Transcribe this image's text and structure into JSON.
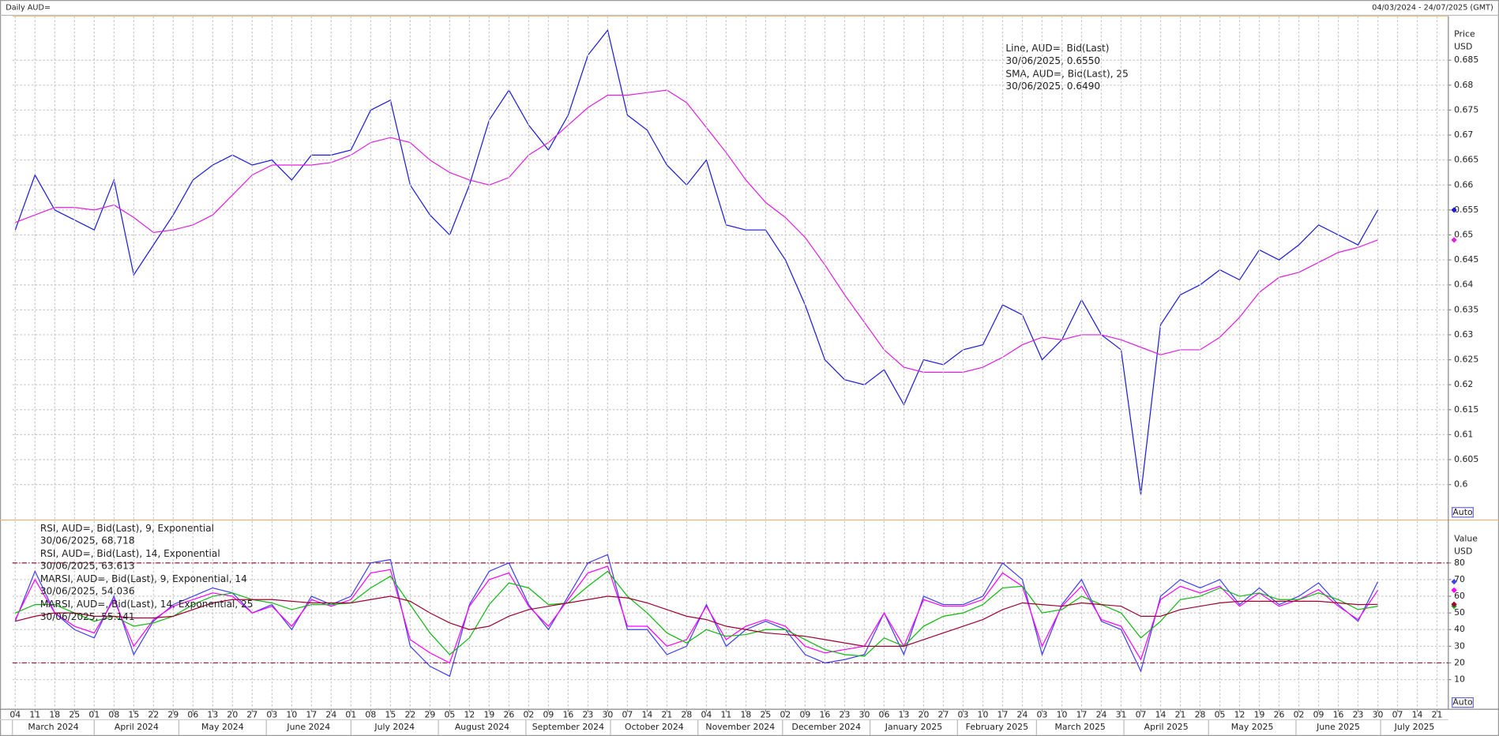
{
  "header": {
    "title": "Daily AUD=",
    "range": "04/03/2024 - 24/07/2025 (GMT)"
  },
  "chart_data": [
    {
      "type": "line",
      "y_axis_label": "Price",
      "y_axis_unit": "USD",
      "auto_button": "Auto",
      "legend": "upper right",
      "grid": true,
      "xlim": [
        "2024-03-03",
        "2025-07-25"
      ],
      "ylim": [
        0.5931,
        0.6938
      ],
      "yticks": [
        0.6,
        0.605,
        0.61,
        0.615,
        0.62,
        0.625,
        0.63,
        0.635,
        0.64,
        0.645,
        0.65,
        0.655,
        0.66,
        0.665,
        0.67,
        0.675,
        0.68,
        0.685
      ],
      "x": [
        "2024-03-04",
        "2024-03-11",
        "2024-03-18",
        "2024-03-25",
        "2024-04-01",
        "2024-04-08",
        "2024-04-15",
        "2024-04-22",
        "2024-04-29",
        "2024-05-06",
        "2024-05-13",
        "2024-05-20",
        "2024-05-27",
        "2024-06-03",
        "2024-06-10",
        "2024-06-17",
        "2024-06-24",
        "2024-07-01",
        "2024-07-08",
        "2024-07-15",
        "2024-07-22",
        "2024-07-29",
        "2024-08-05",
        "2024-08-12",
        "2024-08-19",
        "2024-08-26",
        "2024-09-02",
        "2024-09-09",
        "2024-09-16",
        "2024-09-23",
        "2024-09-30",
        "2024-10-07",
        "2024-10-14",
        "2024-10-21",
        "2024-10-28",
        "2024-11-04",
        "2024-11-11",
        "2024-11-18",
        "2024-11-25",
        "2024-12-02",
        "2024-12-09",
        "2024-12-16",
        "2024-12-23",
        "2024-12-30",
        "2025-01-06",
        "2025-01-13",
        "2025-01-20",
        "2025-01-27",
        "2025-02-03",
        "2025-02-10",
        "2025-02-17",
        "2025-02-24",
        "2025-03-03",
        "2025-03-10",
        "2025-03-17",
        "2025-03-24",
        "2025-03-31",
        "2025-04-07",
        "2025-04-14",
        "2025-04-21",
        "2025-04-28",
        "2025-05-05",
        "2025-05-12",
        "2025-05-19",
        "2025-05-26",
        "2025-06-02",
        "2025-06-09",
        "2025-06-16",
        "2025-06-23",
        "2025-06-30"
      ],
      "series": [
        {
          "name": "Line, AUD=, Bid(Last)",
          "last_label": "30/06/2025, 0.6550",
          "color": "#1a1ad8",
          "values": [
            0.651,
            0.662,
            0.655,
            0.653,
            0.651,
            0.661,
            0.642,
            0.648,
            0.654,
            0.661,
            0.664,
            0.666,
            0.664,
            0.665,
            0.661,
            0.666,
            0.666,
            0.667,
            0.675,
            0.677,
            0.66,
            0.654,
            0.65,
            0.66,
            0.673,
            0.679,
            0.672,
            0.667,
            0.674,
            0.686,
            0.691,
            0.674,
            0.671,
            0.664,
            0.66,
            0.665,
            0.652,
            0.651,
            0.651,
            0.645,
            0.636,
            0.625,
            0.621,
            0.62,
            0.623,
            0.616,
            0.625,
            0.624,
            0.627,
            0.628,
            0.636,
            0.634,
            0.625,
            0.629,
            0.637,
            0.63,
            0.627,
            0.598,
            0.632,
            0.638,
            0.64,
            0.643,
            0.641,
            0.647,
            0.645,
            0.648,
            0.652,
            0.65,
            0.648,
            0.655
          ]
        },
        {
          "name": "SMA, AUD=, Bid(Last),  25",
          "last_label": "30/06/2025, 0.6490",
          "color": "#e020e0",
          "values": [
            0.6525,
            0.654,
            0.6555,
            0.6555,
            0.655,
            0.656,
            0.6535,
            0.6505,
            0.651,
            0.652,
            0.654,
            0.658,
            0.662,
            0.664,
            0.664,
            0.664,
            0.6645,
            0.666,
            0.6685,
            0.6695,
            0.6685,
            0.665,
            0.6625,
            0.661,
            0.66,
            0.6615,
            0.666,
            0.6685,
            0.672,
            0.6755,
            0.678,
            0.678,
            0.6785,
            0.679,
            0.6765,
            0.6715,
            0.6665,
            0.661,
            0.6565,
            0.6535,
            0.6495,
            0.644,
            0.638,
            0.6325,
            0.627,
            0.6235,
            0.6225,
            0.6225,
            0.6225,
            0.6235,
            0.6255,
            0.628,
            0.6295,
            0.629,
            0.63,
            0.63,
            0.629,
            0.6275,
            0.626,
            0.627,
            0.627,
            0.6295,
            0.6335,
            0.6385,
            0.6415,
            0.6425,
            0.6445,
            0.6465,
            0.6475,
            0.649
          ]
        }
      ]
    },
    {
      "type": "line",
      "y_axis_label": "Value",
      "y_axis_unit": "USD",
      "auto_button": "Auto",
      "legend": "upper left",
      "grid": true,
      "xlim": [
        "2024-03-03",
        "2025-07-25"
      ],
      "ylim": [
        -7.8,
        105.2
      ],
      "yticks": [
        10,
        20,
        30,
        40,
        50,
        60,
        70,
        80
      ],
      "reference_lines": [
        20,
        80
      ],
      "reference_color": "#8b1a3a",
      "x": [
        "2024-03-04",
        "2024-03-11",
        "2024-03-18",
        "2024-03-25",
        "2024-04-01",
        "2024-04-08",
        "2024-04-15",
        "2024-04-22",
        "2024-04-29",
        "2024-05-06",
        "2024-05-13",
        "2024-05-20",
        "2024-05-27",
        "2024-06-03",
        "2024-06-10",
        "2024-06-17",
        "2024-06-24",
        "2024-07-01",
        "2024-07-08",
        "2024-07-15",
        "2024-07-22",
        "2024-07-29",
        "2024-08-05",
        "2024-08-12",
        "2024-08-19",
        "2024-08-26",
        "2024-09-02",
        "2024-09-09",
        "2024-09-16",
        "2024-09-23",
        "2024-09-30",
        "2024-10-07",
        "2024-10-14",
        "2024-10-21",
        "2024-10-28",
        "2024-11-04",
        "2024-11-11",
        "2024-11-18",
        "2024-11-25",
        "2024-12-02",
        "2024-12-09",
        "2024-12-16",
        "2024-12-23",
        "2024-12-30",
        "2025-01-06",
        "2025-01-13",
        "2025-01-20",
        "2025-01-27",
        "2025-02-03",
        "2025-02-10",
        "2025-02-17",
        "2025-02-24",
        "2025-03-03",
        "2025-03-10",
        "2025-03-17",
        "2025-03-24",
        "2025-03-31",
        "2025-04-07",
        "2025-04-14",
        "2025-04-21",
        "2025-04-28",
        "2025-05-05",
        "2025-05-12",
        "2025-05-19",
        "2025-05-26",
        "2025-06-02",
        "2025-06-09",
        "2025-06-16",
        "2025-06-23",
        "2025-06-30"
      ],
      "series": [
        {
          "name": "RSI, AUD=, Bid(Last),  9, Exponential",
          "last_label": "30/06/2025, 68.718",
          "color": "#4040f0",
          "values": [
            45,
            75,
            50,
            40,
            35,
            60,
            25,
            45,
            55,
            60,
            65,
            62,
            50,
            55,
            40,
            60,
            55,
            60,
            80,
            82,
            30,
            18,
            12,
            55,
            75,
            80,
            55,
            40,
            60,
            80,
            85,
            40,
            40,
            25,
            30,
            55,
            30,
            40,
            45,
            40,
            25,
            20,
            22,
            25,
            50,
            25,
            60,
            55,
            55,
            60,
            80,
            70,
            25,
            55,
            70,
            45,
            40,
            15,
            60,
            70,
            65,
            70,
            55,
            65,
            55,
            60,
            68,
            55,
            45,
            68.718
          ]
        },
        {
          "name": "RSI, AUD=, Bid(Last),  14, Exponential",
          "last_label": "30/06/2025, 63.613",
          "color": "#ff00ff",
          "values": [
            46,
            70,
            50,
            42,
            38,
            58,
            30,
            46,
            54,
            58,
            62,
            60,
            50,
            54,
            42,
            58,
            54,
            58,
            74,
            76,
            34,
            26,
            20,
            54,
            70,
            74,
            54,
            42,
            58,
            74,
            78,
            42,
            42,
            30,
            34,
            54,
            34,
            42,
            46,
            42,
            30,
            26,
            28,
            30,
            50,
            30,
            58,
            54,
            54,
            58,
            74,
            66,
            30,
            54,
            66,
            46,
            42,
            22,
            58,
            66,
            62,
            66,
            54,
            62,
            54,
            58,
            64,
            54,
            46,
            63.613
          ]
        },
        {
          "name": "MARSI, AUD=, Bid(Last),  9, Exponential, 14",
          "last_label": "30/06/2025, 54.036",
          "color": "#10b810",
          "values": [
            50,
            55,
            55,
            50,
            45,
            48,
            42,
            44,
            48,
            55,
            60,
            62,
            58,
            56,
            52,
            55,
            55,
            56,
            65,
            72,
            55,
            38,
            25,
            35,
            55,
            68,
            65,
            55,
            56,
            66,
            75,
            60,
            50,
            38,
            32,
            40,
            36,
            37,
            40,
            40,
            34,
            28,
            25,
            24,
            35,
            30,
            42,
            48,
            50,
            55,
            65,
            66,
            50,
            52,
            60,
            55,
            50,
            35,
            45,
            58,
            60,
            65,
            60,
            62,
            58,
            58,
            62,
            58,
            52,
            54.036
          ]
        },
        {
          "name": "MARSI, AUD=, Bid(Last),  14, Exponential, 25",
          "last_label": "30/06/2025, 55.141",
          "color": "#a00030",
          "values": [
            45,
            48,
            50,
            50,
            48,
            48,
            47,
            47,
            48,
            52,
            56,
            58,
            58,
            58,
            57,
            56,
            56,
            56,
            58,
            60,
            57,
            50,
            44,
            40,
            42,
            48,
            52,
            54,
            56,
            58,
            60,
            59,
            56,
            52,
            48,
            46,
            42,
            40,
            38,
            37,
            36,
            34,
            32,
            30,
            30,
            30,
            34,
            38,
            42,
            46,
            52,
            56,
            55,
            54,
            56,
            55,
            54,
            48,
            48,
            52,
            54,
            56,
            57,
            57,
            57,
            57,
            57,
            56,
            55,
            55.141
          ]
        }
      ],
      "xticks": [
        {
          "value": "2024-03-04",
          "label": "04"
        },
        {
          "value": "2024-03-11",
          "label": "11"
        },
        {
          "value": "2024-03-18",
          "label": "18"
        },
        {
          "value": "2024-03-25",
          "label": "25"
        },
        {
          "value": "2024-04-01",
          "label": "01"
        },
        {
          "value": "2024-04-08",
          "label": "08"
        },
        {
          "value": "2024-04-15",
          "label": "15"
        },
        {
          "value": "2024-04-22",
          "label": "22"
        },
        {
          "value": "2024-04-29",
          "label": "29"
        },
        {
          "value": "2024-05-06",
          "label": "06"
        },
        {
          "value": "2024-05-13",
          "label": "13"
        },
        {
          "value": "2024-05-20",
          "label": "20"
        },
        {
          "value": "2024-05-27",
          "label": "27"
        },
        {
          "value": "2024-06-03",
          "label": "03"
        },
        {
          "value": "2024-06-10",
          "label": "10"
        },
        {
          "value": "2024-06-17",
          "label": "17"
        },
        {
          "value": "2024-06-24",
          "label": "24"
        },
        {
          "value": "2024-07-01",
          "label": "01"
        },
        {
          "value": "2024-07-08",
          "label": "08"
        },
        {
          "value": "2024-07-15",
          "label": "15"
        },
        {
          "value": "2024-07-22",
          "label": "22"
        },
        {
          "value": "2024-07-29",
          "label": "29"
        },
        {
          "value": "2024-08-05",
          "label": "05"
        },
        {
          "value": "2024-08-12",
          "label": "12"
        },
        {
          "value": "2024-08-19",
          "label": "19"
        },
        {
          "value": "2024-08-26",
          "label": "26"
        },
        {
          "value": "2024-09-02",
          "label": "02"
        },
        {
          "value": "2024-09-09",
          "label": "09"
        },
        {
          "value": "2024-09-16",
          "label": "16"
        },
        {
          "value": "2024-09-23",
          "label": "23"
        },
        {
          "value": "2024-09-30",
          "label": "30"
        },
        {
          "value": "2024-10-07",
          "label": "07"
        },
        {
          "value": "2024-10-14",
          "label": "14"
        },
        {
          "value": "2024-10-21",
          "label": "21"
        },
        {
          "value": "2024-10-28",
          "label": "28"
        },
        {
          "value": "2024-11-04",
          "label": "04"
        },
        {
          "value": "2024-11-11",
          "label": "11"
        },
        {
          "value": "2024-11-18",
          "label": "18"
        },
        {
          "value": "2024-11-25",
          "label": "25"
        },
        {
          "value": "2024-12-02",
          "label": "02"
        },
        {
          "value": "2024-12-09",
          "label": "09"
        },
        {
          "value": "2024-12-16",
          "label": "16"
        },
        {
          "value": "2024-12-23",
          "label": "23"
        },
        {
          "value": "2024-12-30",
          "label": "30"
        },
        {
          "value": "2025-01-06",
          "label": "06"
        },
        {
          "value": "2025-01-13",
          "label": "13"
        },
        {
          "value": "2025-01-20",
          "label": "20"
        },
        {
          "value": "2025-01-27",
          "label": "27"
        },
        {
          "value": "2025-02-03",
          "label": "03"
        },
        {
          "value": "2025-02-10",
          "label": "10"
        },
        {
          "value": "2025-02-17",
          "label": "17"
        },
        {
          "value": "2025-02-24",
          "label": "24"
        },
        {
          "value": "2025-03-03",
          "label": "03"
        },
        {
          "value": "2025-03-10",
          "label": "10"
        },
        {
          "value": "2025-03-17",
          "label": "17"
        },
        {
          "value": "2025-03-24",
          "label": "24"
        },
        {
          "value": "2025-03-31",
          "label": "31"
        },
        {
          "value": "2025-04-07",
          "label": "07"
        },
        {
          "value": "2025-04-14",
          "label": "14"
        },
        {
          "value": "2025-04-21",
          "label": "21"
        },
        {
          "value": "2025-04-28",
          "label": "28"
        },
        {
          "value": "2025-05-05",
          "label": "05"
        },
        {
          "value": "2025-05-12",
          "label": "12"
        },
        {
          "value": "2025-05-19",
          "label": "19"
        },
        {
          "value": "2025-05-26",
          "label": "26"
        },
        {
          "value": "2025-06-02",
          "label": "02"
        },
        {
          "value": "2025-06-09",
          "label": "09"
        },
        {
          "value": "2025-06-16",
          "label": "16"
        },
        {
          "value": "2025-06-23",
          "label": "23"
        },
        {
          "value": "2025-06-30",
          "label": "30"
        },
        {
          "value": "2025-07-07",
          "label": "07"
        },
        {
          "value": "2025-07-14",
          "label": "14"
        },
        {
          "value": "2025-07-21",
          "label": "21"
        }
      ],
      "month_labels": [
        {
          "value": "2024-03",
          "label": "March 2024"
        },
        {
          "value": "2024-04",
          "label": "April 2024"
        },
        {
          "value": "2024-05",
          "label": "May 2024"
        },
        {
          "value": "2024-06",
          "label": "June 2024"
        },
        {
          "value": "2024-07",
          "label": "July 2024"
        },
        {
          "value": "2024-08",
          "label": "August 2024"
        },
        {
          "value": "2024-09",
          "label": "September 2024"
        },
        {
          "value": "2024-10",
          "label": "October 2024"
        },
        {
          "value": "2024-11",
          "label": "November 2024"
        },
        {
          "value": "2024-12",
          "label": "December 2024"
        },
        {
          "value": "2025-01",
          "label": "January 2025"
        },
        {
          "value": "2025-02",
          "label": "February 2025"
        },
        {
          "value": "2025-03",
          "label": "March 2025"
        },
        {
          "value": "2025-04",
          "label": "April 2025"
        },
        {
          "value": "2025-05",
          "label": "May 2025"
        },
        {
          "value": "2025-06",
          "label": "June 2025"
        },
        {
          "value": "2025-07",
          "label": "July 2025"
        }
      ]
    }
  ]
}
